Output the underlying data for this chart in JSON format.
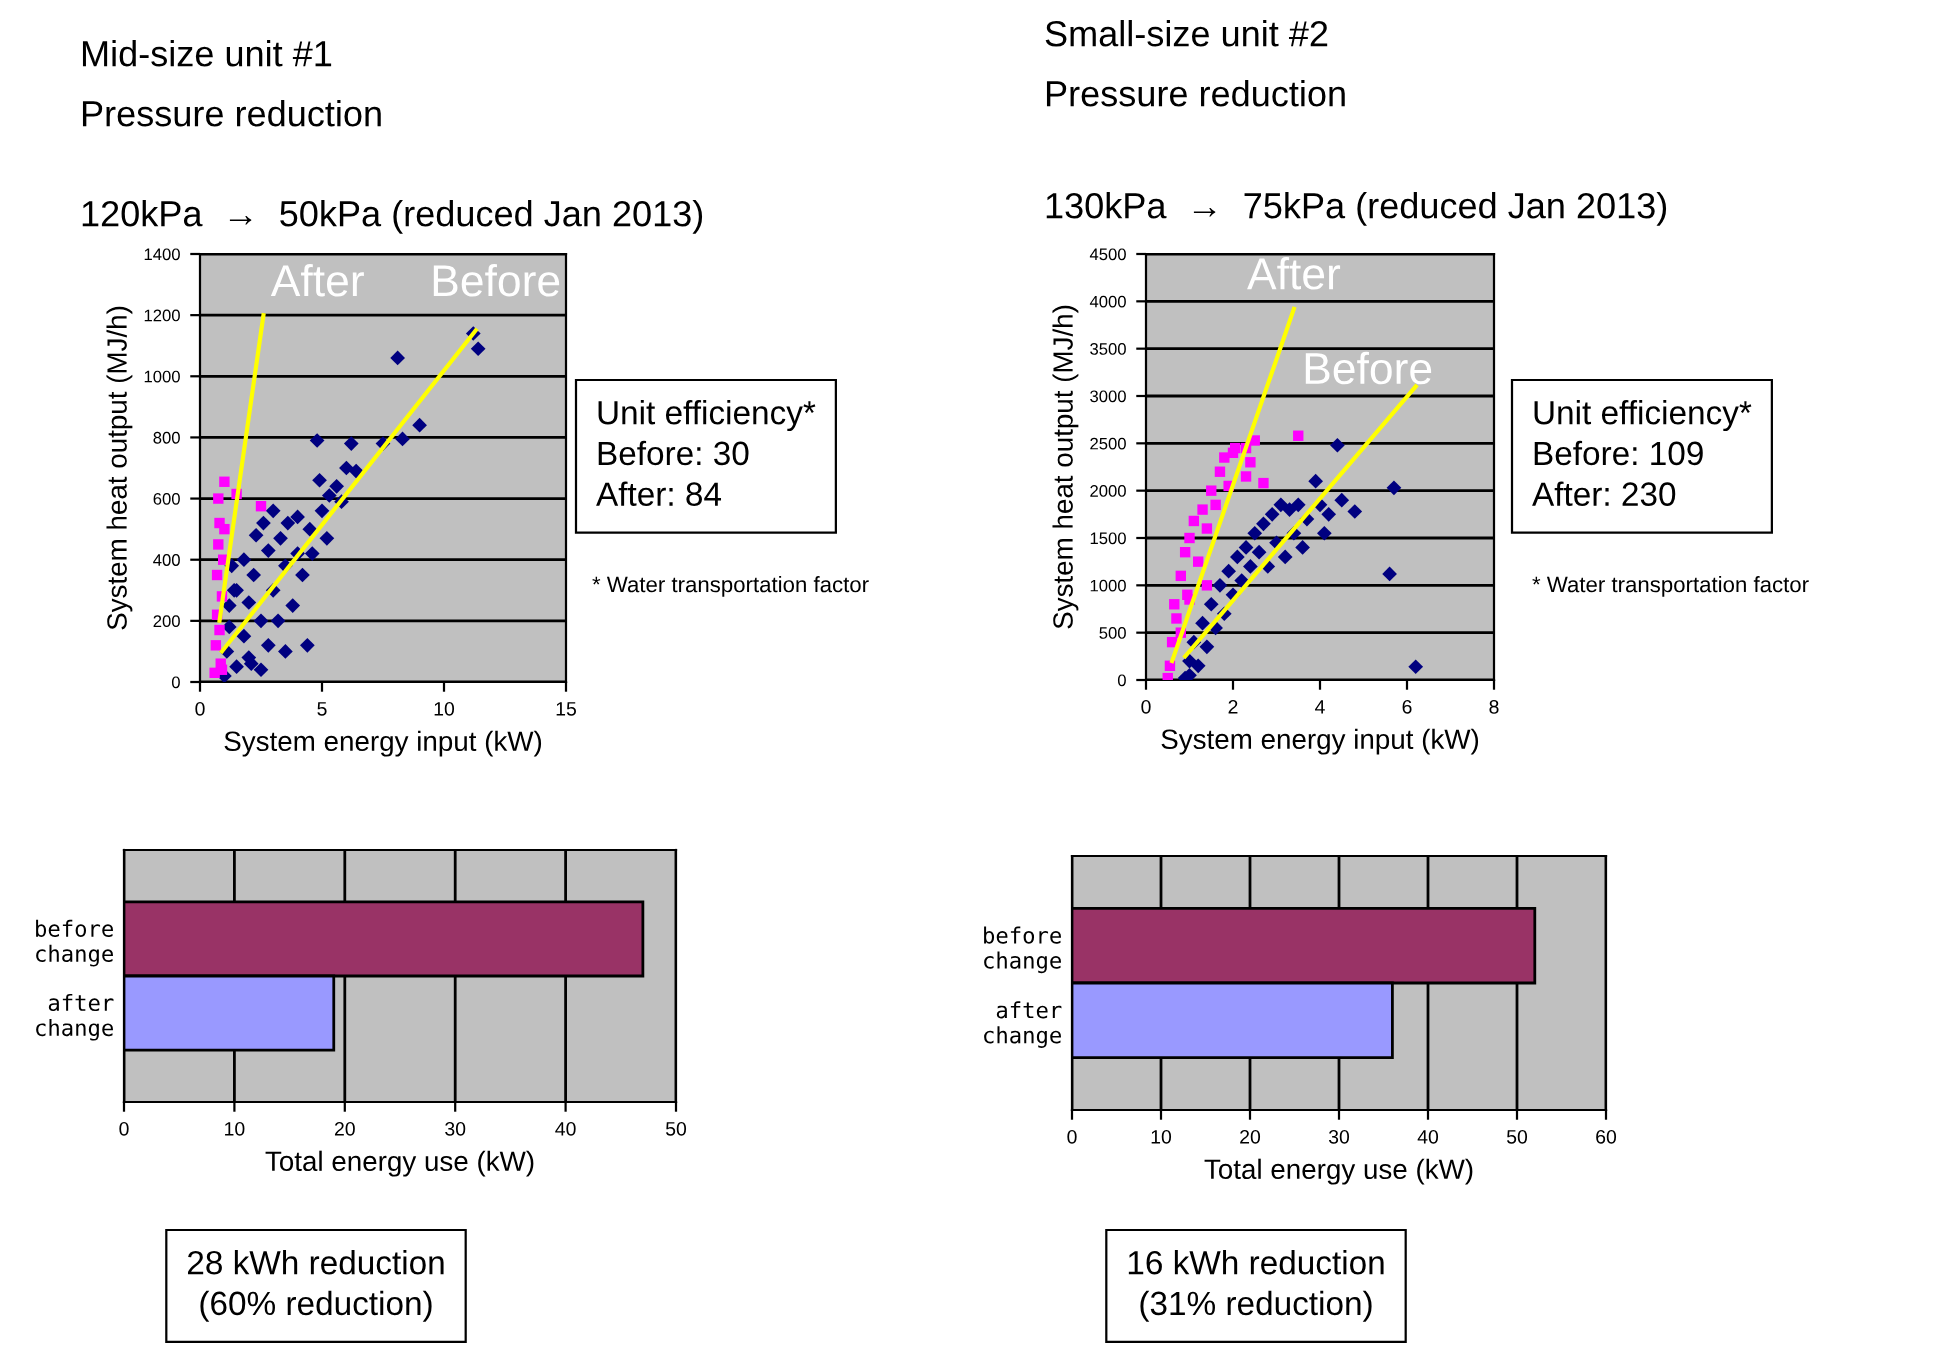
{
  "chart_data": [
    {
      "type": "scatter",
      "title": "Mid-size unit #1",
      "subtitle": "Pressure reduction",
      "xlabel": "System energy input (kW)",
      "ylabel": "System heat output (MJ/h)",
      "annotations": [
        "120kPa  →  50kPa (reduced Jan 2013)",
        "Unit efficiency*\nBefore: 30\nAfter: 84",
        "* Water transportation factor"
      ],
      "xlim": [
        0,
        15
      ],
      "xticks": [
        0,
        5,
        10,
        15
      ],
      "ylim": [
        0,
        1400
      ],
      "yticks": [
        0,
        200,
        400,
        600,
        800,
        1000,
        1200,
        1400
      ],
      "grid": "y",
      "legend": false,
      "series": [
        {
          "type": "scatter",
          "marker": "diamond",
          "color": "#000080",
          "x": [
            1.0,
            1.1,
            1.2,
            1.3,
            1.5,
            1.5,
            1.8,
            1.8,
            2.0,
            2.0,
            2.2,
            2.3,
            2.5,
            2.5,
            2.6,
            2.8,
            2.8,
            3.0,
            3.0,
            3.2,
            3.3,
            3.5,
            3.5,
            3.6,
            3.8,
            4.0,
            4.0,
            4.2,
            4.4,
            4.5,
            4.6,
            4.8,
            4.9,
            5.0,
            5.2,
            5.3,
            5.6,
            5.8,
            6.0,
            6.2,
            6.4,
            7.5,
            8.1,
            8.3,
            9.0,
            11.2,
            11.4,
            1.4,
            1.2,
            2.1
          ],
          "values": [
            20,
            100,
            250,
            380,
            50,
            300,
            150,
            400,
            80,
            260,
            350,
            480,
            40,
            200,
            520,
            120,
            430,
            300,
            560,
            200,
            470,
            100,
            380,
            520,
            250,
            420,
            540,
            350,
            120,
            500,
            420,
            790,
            660,
            560,
            470,
            610,
            640,
            590,
            700,
            780,
            690,
            780,
            1060,
            795,
            840,
            1140,
            1090,
            300,
            180,
            60
          ]
        },
        {
          "type": "scatter",
          "marker": "square",
          "color": "#ff00ff",
          "x": [
            0.6,
            0.65,
            0.7,
            0.7,
            0.75,
            0.8,
            0.85,
            0.9,
            0.95,
            1.0,
            0.75,
            1.0,
            1.5,
            2.5,
            0.8,
            0.9
          ],
          "values": [
            30,
            120,
            220,
            350,
            450,
            520,
            60,
            280,
            400,
            500,
            600,
            655,
            615,
            575,
            170,
            40
          ]
        },
        {
          "type": "line",
          "name": "After",
          "marker": "none",
          "color": "#ffff00",
          "x": [
            0.8,
            2.6
          ],
          "values": [
            200,
            1200
          ]
        },
        {
          "type": "line",
          "name": "Before",
          "marker": "none",
          "color": "#ffff00",
          "x": [
            0.9,
            11.3
          ],
          "values": [
            100,
            1150
          ]
        }
      ]
    },
    {
      "type": "scatter",
      "title": "Small-size unit #2",
      "subtitle": "Pressure reduction",
      "xlabel": "System energy input (kW)",
      "ylabel": "System heat output (MJ/h)",
      "annotations": [
        "130kPa  →  75kPa (reduced Jan 2013)",
        "Unit efficiency*\nBefore: 109\nAfter: 230",
        "* Water transportation factor"
      ],
      "xlim": [
        0,
        8
      ],
      "xticks": [
        0,
        2,
        4,
        6,
        8
      ],
      "ylim": [
        0,
        4500
      ],
      "yticks": [
        0,
        500,
        1000,
        1500,
        2000,
        2500,
        3000,
        3500,
        4000,
        4500
      ],
      "grid": "y",
      "legend": false,
      "series": [
        {
          "type": "scatter",
          "marker": "diamond",
          "color": "#000080",
          "x": [
            0.9,
            1.0,
            1.1,
            1.2,
            1.3,
            1.4,
            1.5,
            1.6,
            1.7,
            1.8,
            1.9,
            2.0,
            2.1,
            2.2,
            2.3,
            2.4,
            2.5,
            2.6,
            2.7,
            2.8,
            2.9,
            3.0,
            3.1,
            3.2,
            3.3,
            3.4,
            3.5,
            3.6,
            3.7,
            3.9,
            4.0,
            4.1,
            4.2,
            4.4,
            4.5,
            4.8,
            5.6,
            5.7,
            6.2,
            1.0
          ],
          "values": [
            20,
            200,
            400,
            150,
            600,
            350,
            800,
            550,
            1000,
            700,
            1150,
            900,
            1300,
            1050,
            1400,
            1200,
            1550,
            1350,
            1650,
            1200,
            1750,
            1450,
            1850,
            1300,
            1800,
            1550,
            1850,
            1400,
            1700,
            2100,
            1850,
            1550,
            1750,
            2480,
            1900,
            1780,
            1120,
            2030,
            140,
            50
          ]
        },
        {
          "type": "scatter",
          "marker": "square",
          "color": "#ff00ff",
          "x": [
            0.5,
            0.55,
            0.6,
            0.65,
            0.7,
            0.8,
            0.9,
            0.95,
            1.0,
            1.1,
            1.2,
            1.3,
            1.4,
            1.5,
            1.6,
            1.7,
            1.8,
            1.9,
            2.0,
            2.3,
            2.05,
            2.3,
            2.4,
            2.5,
            2.7,
            3.5,
            1.0,
            1.4,
            0.8
          ],
          "values": [
            20,
            150,
            400,
            800,
            650,
            1100,
            1350,
            900,
            1500,
            1680,
            1250,
            1800,
            1600,
            2000,
            1850,
            2200,
            2350,
            2050,
            2400,
            2150,
            2450,
            2450,
            2300,
            2530,
            2080,
            2580,
            850,
            1000,
            500
          ]
        },
        {
          "type": "line",
          "name": "After",
          "marker": "none",
          "color": "#ffff00",
          "x": [
            0.6,
            3.4
          ],
          "values": [
            200,
            3920
          ]
        },
        {
          "type": "line",
          "name": "Before",
          "marker": "none",
          "color": "#ffff00",
          "x": [
            0.9,
            6.2
          ],
          "values": [
            250,
            3100
          ]
        }
      ]
    },
    {
      "type": "bar",
      "orientation": "horizontal",
      "xlabel": "Total energy use (kW)",
      "categories": [
        "before\nchange",
        "after\nchange"
      ],
      "values": [
        47,
        19
      ],
      "colors": [
        "#993366",
        "#9999ff"
      ],
      "xlim": [
        0,
        50
      ],
      "xticks": [
        0,
        10,
        20,
        30,
        40,
        50
      ],
      "grid": "x",
      "annotations": [
        "28 kWh reduction\n(60% reduction)"
      ]
    },
    {
      "type": "bar",
      "orientation": "horizontal",
      "xlabel": "Total energy use (kW)",
      "categories": [
        "before\nchange",
        "after\nchange"
      ],
      "values": [
        52,
        36
      ],
      "colors": [
        "#993366",
        "#9999ff"
      ],
      "xlim": [
        0,
        60
      ],
      "xticks": [
        0,
        10,
        20,
        30,
        40,
        50,
        60
      ],
      "grid": "x",
      "annotations": [
        "16 kWh reduction\n(31% reduction)"
      ]
    }
  ]
}
